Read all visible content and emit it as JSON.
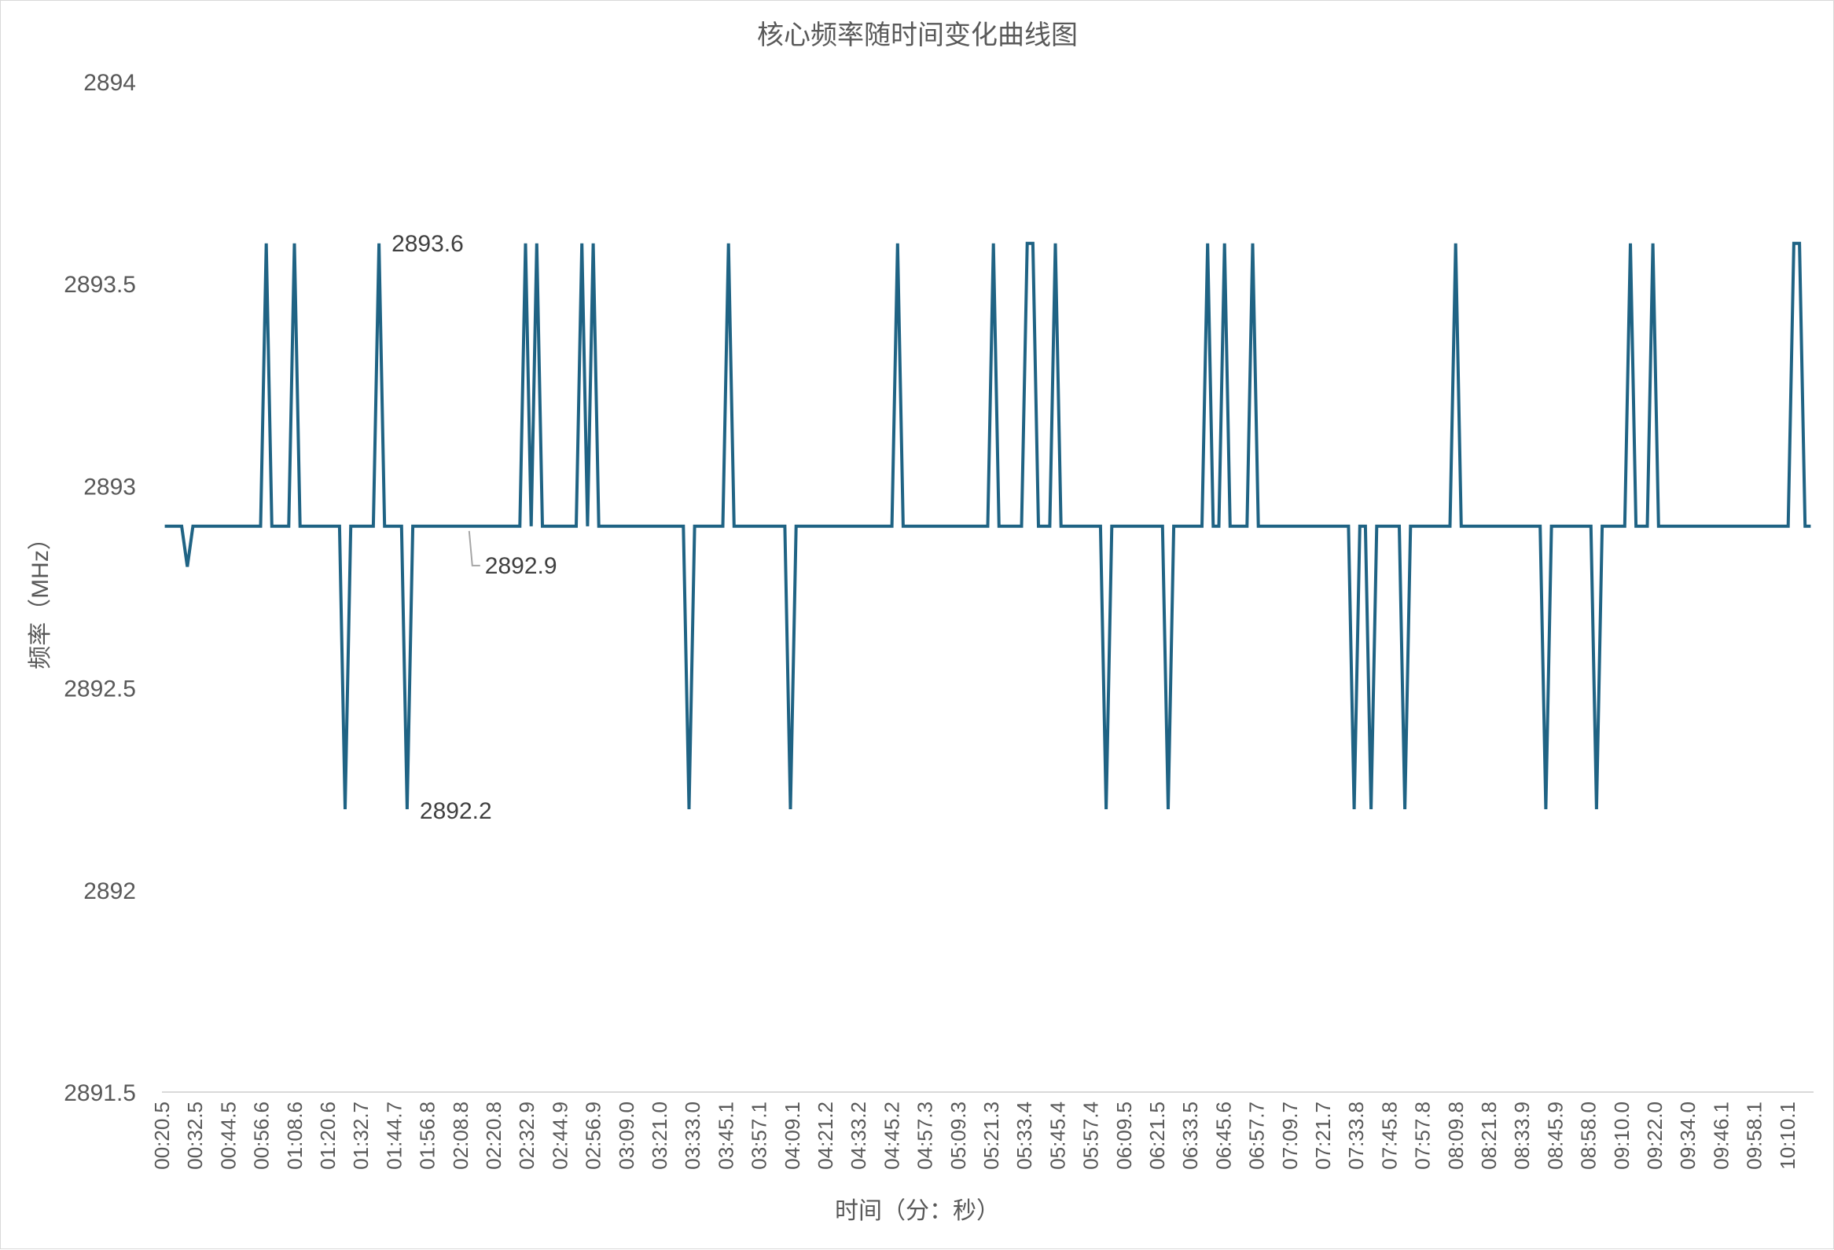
{
  "chart_data": {
    "type": "line",
    "title": "核心频率随时间变化曲线图",
    "xlabel": "时间（分：秒）",
    "ylabel": "频率（MHz）",
    "ylim": [
      2891.5,
      2894
    ],
    "yticks": [
      "2894",
      "2893.5",
      "2893",
      "2892.5",
      "2892",
      "2891.5"
    ],
    "x_tick_labels": [
      "00:20.5",
      "00:32.5",
      "00:44.5",
      "00:56.6",
      "01:08.6",
      "01:20.6",
      "01:32.7",
      "01:44.7",
      "01:56.8",
      "02:08.8",
      "02:20.8",
      "02:32.9",
      "02:44.9",
      "02:56.9",
      "03:09.0",
      "03:21.0",
      "03:33.0",
      "03:45.1",
      "03:57.1",
      "04:09.1",
      "04:21.2",
      "04:33.2",
      "04:45.2",
      "04:57.3",
      "05:09.3",
      "05:21.3",
      "05:33.4",
      "05:45.4",
      "05:57.4",
      "06:09.5",
      "06:21.5",
      "06:33.5",
      "06:45.6",
      "06:57.7",
      "07:09.7",
      "07:21.7",
      "07:33.8",
      "07:45.8",
      "07:57.8",
      "08:09.8",
      "08:21.8",
      "08:33.9",
      "08:45.9",
      "08:58.0",
      "09:10.0",
      "09:22.0",
      "09:34.0",
      "09:46.1",
      "09:58.1",
      "10:10.1"
    ],
    "grid": false,
    "legend": "none",
    "line_color": "#1f6384",
    "series": [
      {
        "values": [
          2892.9,
          2892.9,
          2892.9,
          2892.9,
          2892.8,
          2892.9,
          2892.9,
          2892.9,
          2892.9,
          2892.9,
          2892.9,
          2892.9,
          2892.9,
          2892.9,
          2892.9,
          2892.9,
          2892.9,
          2892.9,
          2893.6,
          2892.9,
          2892.9,
          2892.9,
          2892.9,
          2893.6,
          2892.9,
          2892.9,
          2892.9,
          2892.9,
          2892.9,
          2892.9,
          2892.9,
          2892.9,
          2892.2,
          2892.9,
          2892.9,
          2892.9,
          2892.9,
          2892.9,
          2893.6,
          2892.9,
          2892.9,
          2892.9,
          2892.9,
          2892.2,
          2892.9,
          2892.9,
          2892.9,
          2892.9,
          2892.9,
          2892.9,
          2892.9,
          2892.9,
          2892.9,
          2892.9,
          2892.9,
          2892.9,
          2892.9,
          2892.9,
          2892.9,
          2892.9,
          2892.9,
          2892.9,
          2892.9,
          2892.9,
          2893.6,
          2892.9,
          2893.6,
          2892.9,
          2892.9,
          2892.9,
          2892.9,
          2892.9,
          2892.9,
          2892.9,
          2893.6,
          2892.9,
          2893.6,
          2892.9,
          2892.9,
          2892.9,
          2892.9,
          2892.9,
          2892.9,
          2892.9,
          2892.9,
          2892.9,
          2892.9,
          2892.9,
          2892.9,
          2892.9,
          2892.9,
          2892.9,
          2892.9,
          2892.2,
          2892.9,
          2892.9,
          2892.9,
          2892.9,
          2892.9,
          2892.9,
          2893.6,
          2892.9,
          2892.9,
          2892.9,
          2892.9,
          2892.9,
          2892.9,
          2892.9,
          2892.9,
          2892.9,
          2892.9,
          2892.2,
          2892.9,
          2892.9,
          2892.9,
          2892.9,
          2892.9,
          2892.9,
          2892.9,
          2892.9,
          2892.9,
          2892.9,
          2892.9,
          2892.9,
          2892.9,
          2892.9,
          2892.9,
          2892.9,
          2892.9,
          2892.9,
          2893.6,
          2892.9,
          2892.9,
          2892.9,
          2892.9,
          2892.9,
          2892.9,
          2892.9,
          2892.9,
          2892.9,
          2892.9,
          2892.9,
          2892.9,
          2892.9,
          2892.9,
          2892.9,
          2892.9,
          2893.6,
          2892.9,
          2892.9,
          2892.9,
          2892.9,
          2892.9,
          2893.6,
          2893.6,
          2892.9,
          2892.9,
          2892.9,
          2893.6,
          2892.9,
          2892.9,
          2892.9,
          2892.9,
          2892.9,
          2892.9,
          2892.9,
          2892.9,
          2892.2,
          2892.9,
          2892.9,
          2892.9,
          2892.9,
          2892.9,
          2892.9,
          2892.9,
          2892.9,
          2892.9,
          2892.9,
          2892.2,
          2892.9,
          2892.9,
          2892.9,
          2892.9,
          2892.9,
          2892.9,
          2893.6,
          2892.9,
          2892.9,
          2893.6,
          2892.9,
          2892.9,
          2892.9,
          2892.9,
          2893.6,
          2892.9,
          2892.9,
          2892.9,
          2892.9,
          2892.9,
          2892.9,
          2892.9,
          2892.9,
          2892.9,
          2892.9,
          2892.9,
          2892.9,
          2892.9,
          2892.9,
          2892.9,
          2892.9,
          2892.9,
          2892.2,
          2892.9,
          2892.9,
          2892.2,
          2892.9,
          2892.9,
          2892.9,
          2892.9,
          2892.9,
          2892.2,
          2892.9,
          2892.9,
          2892.9,
          2892.9,
          2892.9,
          2892.9,
          2892.9,
          2892.9,
          2893.6,
          2892.9,
          2892.9,
          2892.9,
          2892.9,
          2892.9,
          2892.9,
          2892.9,
          2892.9,
          2892.9,
          2892.9,
          2892.9,
          2892.9,
          2892.9,
          2892.9,
          2892.9,
          2892.2,
          2892.9,
          2892.9,
          2892.9,
          2892.9,
          2892.9,
          2892.9,
          2892.9,
          2892.9,
          2892.2,
          2892.9,
          2892.9,
          2892.9,
          2892.9,
          2892.9,
          2893.6,
          2892.9,
          2892.9,
          2892.9,
          2893.6,
          2892.9,
          2892.9,
          2892.9,
          2892.9,
          2892.9,
          2892.9,
          2892.9,
          2892.9,
          2892.9,
          2892.9,
          2892.9,
          2892.9,
          2892.9,
          2892.9,
          2892.9,
          2892.9,
          2892.9,
          2892.9,
          2892.9,
          2892.9,
          2892.9,
          2892.9,
          2892.9,
          2892.9,
          2893.6,
          2893.6,
          2892.9,
          2892.9
        ]
      }
    ],
    "annotations": [
      {
        "index": 38,
        "text": "2893.6"
      },
      {
        "index": 43,
        "text": "2892.2"
      },
      {
        "index": 54,
        "text": "2892.9"
      }
    ]
  }
}
